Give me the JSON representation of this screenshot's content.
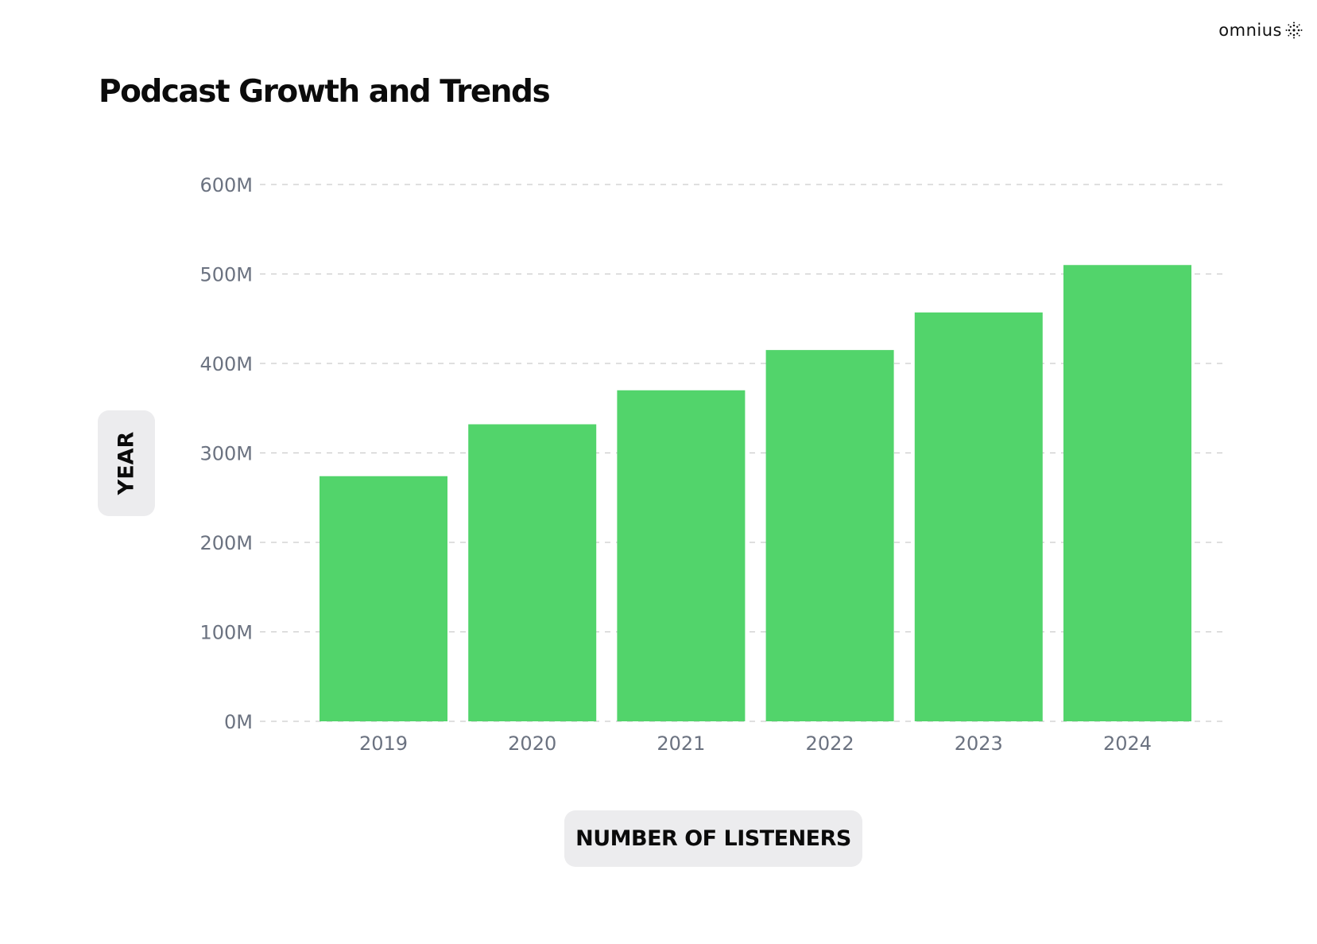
{
  "brand": {
    "name": "omnius",
    "icon": "omnius-logo-icon"
  },
  "colors": {
    "bar": "#52d46b",
    "grid": "#cccccc",
    "tick": "#6b7280",
    "pill": "#ececee"
  },
  "chart_data": {
    "type": "bar",
    "title": "Podcast Growth and Trends",
    "ylabel": "YEAR",
    "xlabel": "NUMBER OF LISTENERS",
    "categories": [
      "2019",
      "2020",
      "2021",
      "2022",
      "2023",
      "2024"
    ],
    "values": [
      274,
      332,
      370,
      415,
      457,
      510
    ],
    "ylim": [
      0,
      600
    ],
    "yticks": [
      0,
      100,
      200,
      300,
      400,
      500,
      600
    ],
    "ytick_labels": [
      "0M",
      "100M",
      "200M",
      "300M",
      "400M",
      "500M",
      "600M"
    ],
    "grid": true,
    "legend": "none"
  }
}
